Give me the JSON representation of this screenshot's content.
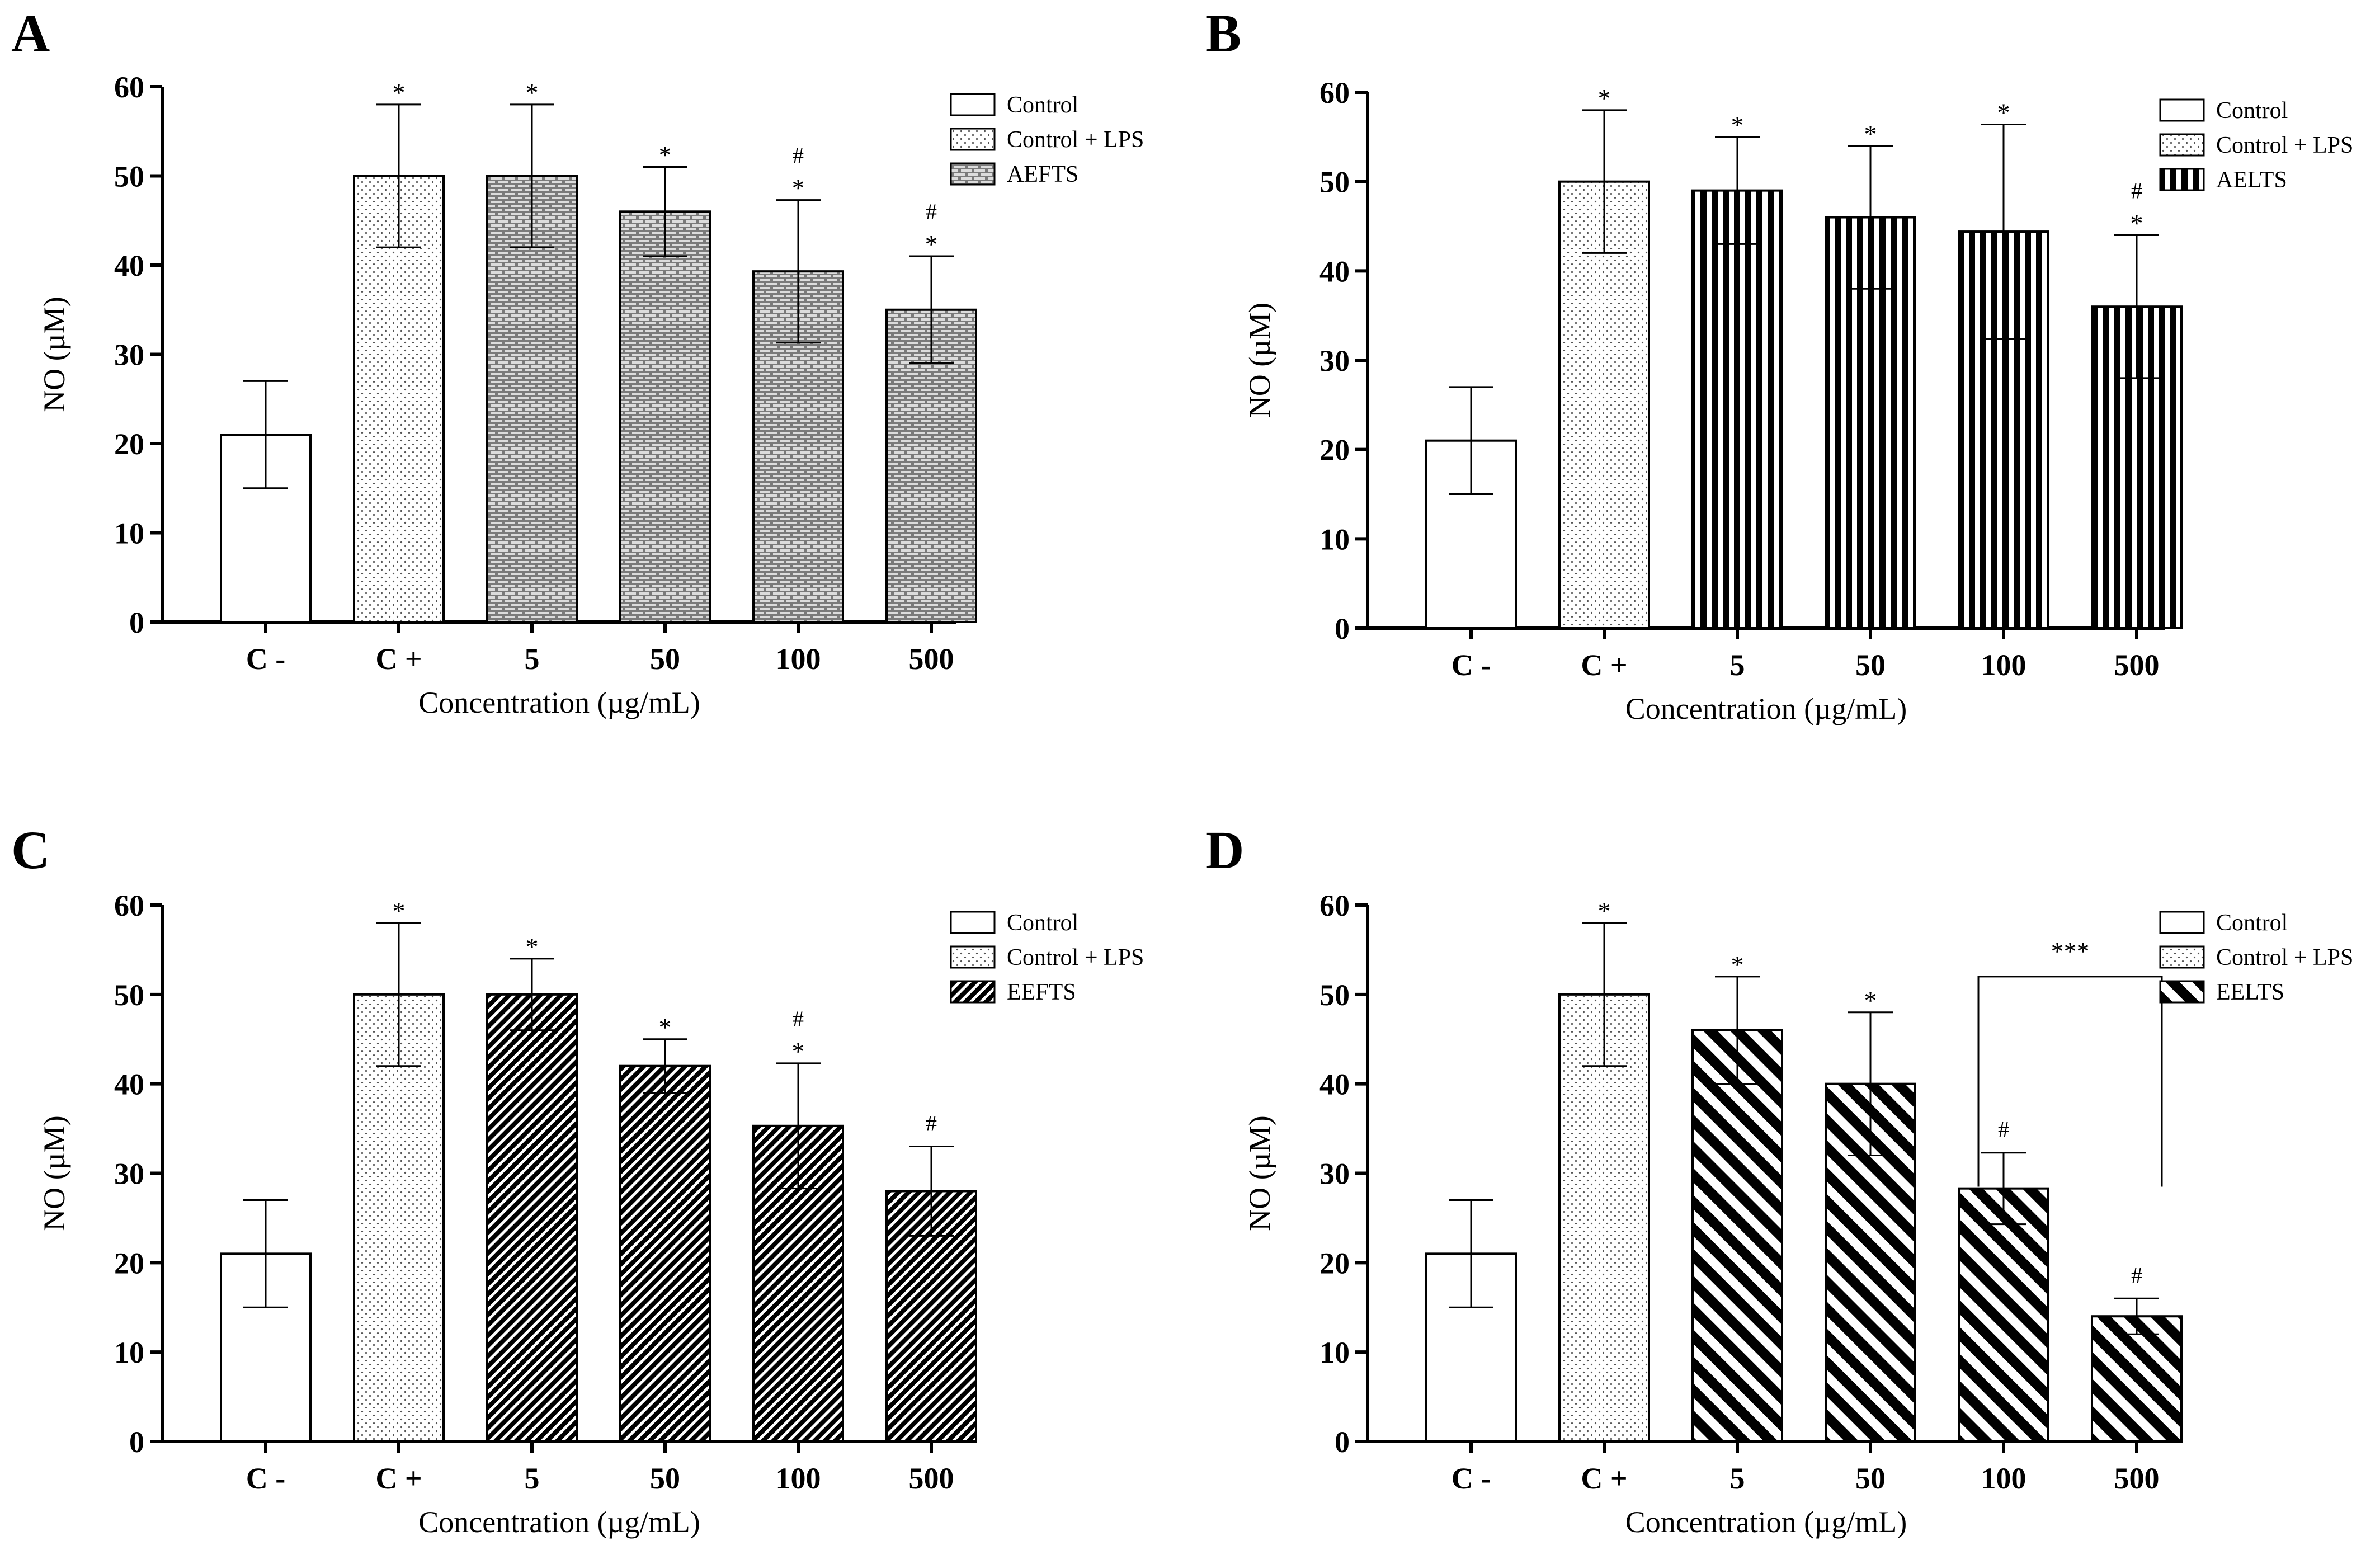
{
  "figure": {
    "colors": {
      "ink": "#000000",
      "background": "#ffffff"
    },
    "legend_common": [
      "Control",
      "Control + LPS"
    ],
    "bar_styles": [
      "open",
      "dots",
      "treatment",
      "treatment",
      "treatment",
      "treatment"
    ]
  },
  "chart_data": [
    {
      "panel": "A",
      "type": "bar",
      "ylabel": "NO (µM)",
      "xlabel": "Concentration (µg/mL)",
      "ylim": [
        0,
        60
      ],
      "yticks": [
        "0",
        "10",
        "20",
        "30",
        "40",
        "50",
        "60"
      ],
      "categories": [
        "C -",
        "C +",
        "5",
        "50",
        "100",
        "500"
      ],
      "values": [
        21,
        50,
        50,
        46,
        39.3,
        35
      ],
      "errors": [
        6,
        8,
        8,
        5,
        8,
        6
      ],
      "annotations": [
        [],
        [
          "*"
        ],
        [
          "*"
        ],
        [
          "*"
        ],
        [
          "#",
          "*"
        ],
        [
          "#",
          "*"
        ]
      ],
      "treatment": "AEFTS",
      "pattern": "brick"
    },
    {
      "panel": "B",
      "type": "bar",
      "ylabel": "NO (µM)",
      "xlabel": "Concentration (µg/mL)",
      "ylim": [
        0,
        60
      ],
      "yticks": [
        "0",
        "10",
        "20",
        "30",
        "40",
        "50",
        "60"
      ],
      "categories": [
        "C -",
        "C +",
        "5",
        "50",
        "100",
        "500"
      ],
      "values": [
        21,
        50,
        49,
        46,
        44.4,
        36
      ],
      "errors": [
        6,
        8,
        6,
        8,
        12,
        8
      ],
      "annotations": [
        [],
        [
          "*"
        ],
        [
          "*"
        ],
        [
          "*"
        ],
        [
          "*"
        ],
        [
          "#",
          "*"
        ]
      ],
      "treatment": "AELTS",
      "pattern": "vstripes"
    },
    {
      "panel": "C",
      "type": "bar",
      "ylabel": "NO (µM)",
      "xlabel": "Concentration (µg/mL)",
      "ylim": [
        0,
        60
      ],
      "yticks": [
        "0",
        "10",
        "20",
        "30",
        "40",
        "50",
        "60"
      ],
      "categories": [
        "C -",
        "C +",
        "5",
        "50",
        "100",
        "500"
      ],
      "values": [
        21,
        50,
        50,
        42,
        35.3,
        28
      ],
      "errors": [
        6,
        8,
        4,
        3,
        7,
        5
      ],
      "annotations": [
        [],
        [
          "*"
        ],
        [
          "*"
        ],
        [
          "*"
        ],
        [
          "#",
          "*"
        ],
        [
          "#"
        ]
      ],
      "treatment": "EEFTS",
      "pattern": "fine-diag"
    },
    {
      "panel": "D",
      "type": "bar",
      "ylabel": "NO (µM)",
      "xlabel": "Concentration (µg/mL)",
      "ylim": [
        0,
        60
      ],
      "yticks": [
        "0",
        "10",
        "20",
        "30",
        "40",
        "50",
        "60"
      ],
      "categories": [
        "C -",
        "C +",
        "5",
        "50",
        "100",
        "500"
      ],
      "values": [
        21,
        50,
        46,
        40,
        28.3,
        14
      ],
      "errors": [
        6,
        8,
        6,
        8,
        4,
        2
      ],
      "annotations": [
        [],
        [
          "*"
        ],
        [
          "*"
        ],
        [
          "*"
        ],
        [
          "#"
        ],
        [
          "#"
        ]
      ],
      "treatment": "EELTS",
      "pattern": "wide-diag",
      "bracket": {
        "from": 4,
        "to": 5,
        "label": "***"
      }
    }
  ]
}
